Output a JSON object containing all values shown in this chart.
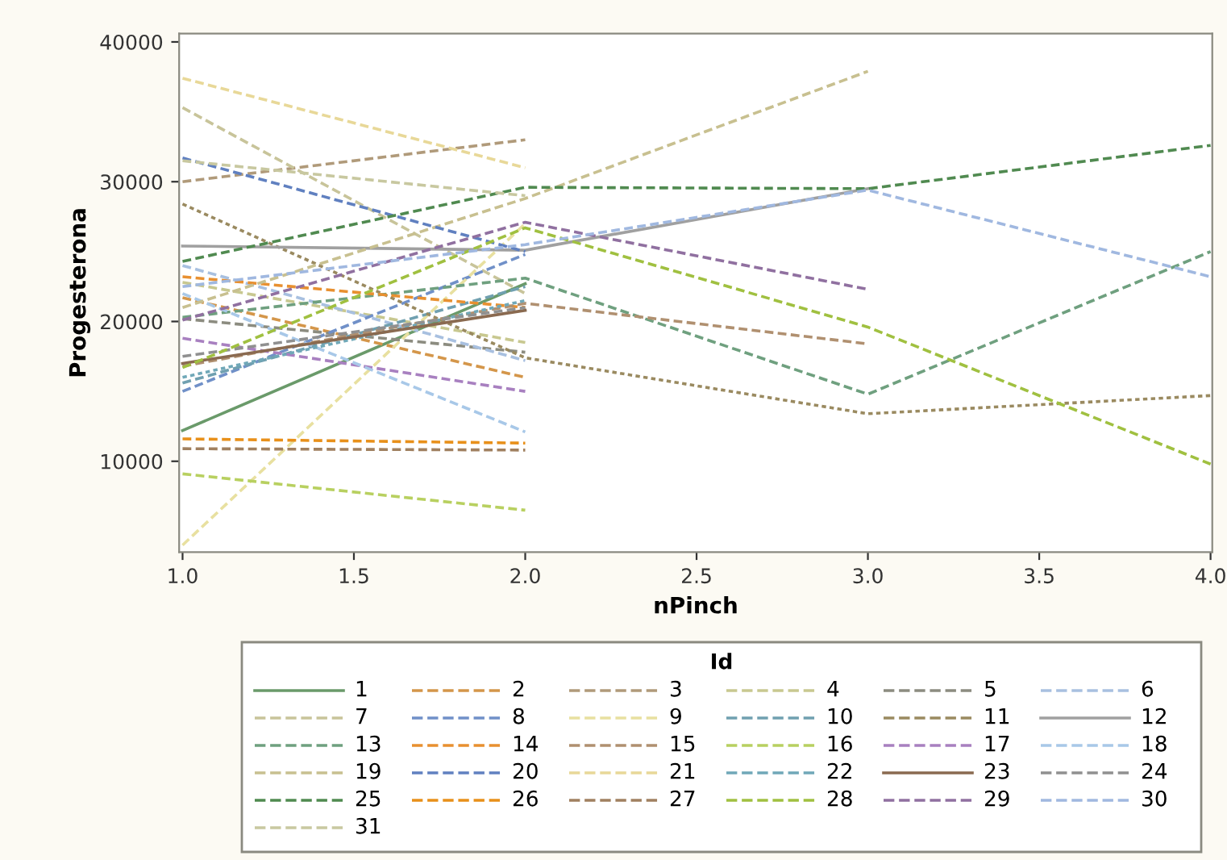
{
  "chart_data": {
    "type": "line",
    "xlabel": "nPinch",
    "ylabel": "Progesterona",
    "legend_title": "Id",
    "legend": "bottom",
    "grid": false,
    "marker": "none",
    "x": [
      1,
      2,
      3,
      4
    ],
    "xlim": [
      0.99,
      4.005
    ],
    "xticks": [
      {
        "value": 1,
        "label": "1.0"
      },
      {
        "value": 1.5,
        "label": "1.5"
      },
      {
        "value": 2,
        "label": "2.0"
      },
      {
        "value": 2.5,
        "label": "2.5"
      },
      {
        "value": 3,
        "label": "3.0"
      },
      {
        "value": 3.5,
        "label": "3.5"
      },
      {
        "value": 4,
        "label": "4.0"
      }
    ],
    "ylim": [
      3500,
      40600
    ],
    "yticks": [
      10000,
      20000,
      30000,
      40000
    ],
    "series": [
      {
        "name": "1",
        "color": "#6a9a6a",
        "line_style": "solid",
        "values": [
          12200,
          22700,
          null,
          null
        ]
      },
      {
        "name": "2",
        "color": "#d4964a",
        "line_style": "dashed",
        "values": [
          21700,
          16000,
          null,
          null
        ]
      },
      {
        "name": "3",
        "color": "#b09a7a",
        "line_style": "dashed",
        "values": [
          30000,
          33000,
          null,
          null
        ]
      },
      {
        "name": "4",
        "color": "#c8c890",
        "line_style": "dashed",
        "values": [
          22800,
          18500,
          null,
          null
        ]
      },
      {
        "name": "5",
        "color": "#8c8c80",
        "line_style": "dashed",
        "values": [
          20200,
          17800,
          null,
          null
        ]
      },
      {
        "name": "6",
        "color": "#a8c0e0",
        "line_style": "dashed",
        "values": [
          24000,
          17200,
          null,
          null
        ]
      },
      {
        "name": "7",
        "color": "#c8c49a",
        "line_style": "dashed",
        "values": [
          35300,
          22000,
          null,
          null
        ]
      },
      {
        "name": "8",
        "color": "#7090c8",
        "line_style": "dashed",
        "values": [
          15000,
          24800,
          null,
          null
        ]
      },
      {
        "name": "9",
        "color": "#e8e0a0",
        "line_style": "dashed",
        "values": [
          4000,
          27000,
          null,
          null
        ]
      },
      {
        "name": "10",
        "color": "#70a0b0",
        "line_style": "dashed",
        "values": [
          15600,
          22500,
          null,
          null
        ]
      },
      {
        "name": "11",
        "color": "#9a8a60",
        "line_style": "dotted",
        "values": [
          28400,
          17400,
          13400,
          14700
        ]
      },
      {
        "name": "12",
        "color": "#a0a0a0",
        "line_style": "solid",
        "values": [
          25400,
          25100,
          29500,
          null
        ]
      },
      {
        "name": "13",
        "color": "#6fa07f",
        "line_style": "dashed",
        "values": [
          20300,
          23100,
          14800,
          25000
        ]
      },
      {
        "name": "14",
        "color": "#e89030",
        "line_style": "dashed",
        "values": [
          23200,
          21000,
          null,
          null
        ]
      },
      {
        "name": "15",
        "color": "#b09070",
        "line_style": "dashed",
        "values": [
          16800,
          21300,
          18400,
          null
        ]
      },
      {
        "name": "16",
        "color": "#b8d060",
        "line_style": "dashed",
        "values": [
          9100,
          6500,
          null,
          null
        ]
      },
      {
        "name": "17",
        "color": "#a880c0",
        "line_style": "dashed",
        "values": [
          18800,
          15000,
          null,
          null
        ]
      },
      {
        "name": "18",
        "color": "#a8c8e8",
        "line_style": "dashed",
        "values": [
          22000,
          12100,
          null,
          null
        ]
      },
      {
        "name": "19",
        "color": "#c8c090",
        "line_style": "dashed",
        "values": [
          21000,
          28800,
          37900,
          null
        ]
      },
      {
        "name": "20",
        "color": "#6080c0",
        "line_style": "dashed",
        "values": [
          31700,
          25000,
          null,
          null
        ]
      },
      {
        "name": "21",
        "color": "#e8d898",
        "line_style": "dashed",
        "values": [
          37400,
          31000,
          null,
          null
        ]
      },
      {
        "name": "22",
        "color": "#70a8b8",
        "line_style": "dotted",
        "values": [
          16000,
          21500,
          null,
          null
        ]
      },
      {
        "name": "23",
        "color": "#8a6a50",
        "line_style": "solid",
        "values": [
          17000,
          20800,
          null,
          null
        ]
      },
      {
        "name": "24",
        "color": "#909090",
        "line_style": "dashed",
        "values": [
          17500,
          21000,
          null,
          null
        ]
      },
      {
        "name": "25",
        "color": "#508a50",
        "line_style": "dashed",
        "values": [
          24300,
          29600,
          29500,
          32600
        ]
      },
      {
        "name": "26",
        "color": "#e8901a",
        "line_style": "dashed",
        "values": [
          11600,
          11300,
          null,
          null
        ]
      },
      {
        "name": "27",
        "color": "#a08060",
        "line_style": "dashed",
        "values": [
          10900,
          10800,
          null,
          null
        ]
      },
      {
        "name": "28",
        "color": "#a0c040",
        "line_style": "dashed",
        "values": [
          16700,
          26700,
          19600,
          9800
        ]
      },
      {
        "name": "29",
        "color": "#9070a0",
        "line_style": "dashed",
        "values": [
          20100,
          27100,
          22300,
          null
        ]
      },
      {
        "name": "30",
        "color": "#a0b8e0",
        "line_style": "dashed",
        "values": [
          22500,
          25500,
          29400,
          23200
        ]
      },
      {
        "name": "31",
        "color": "#c8c8a0",
        "line_style": "dashed",
        "values": [
          31500,
          29000,
          null,
          null
        ]
      }
    ]
  }
}
